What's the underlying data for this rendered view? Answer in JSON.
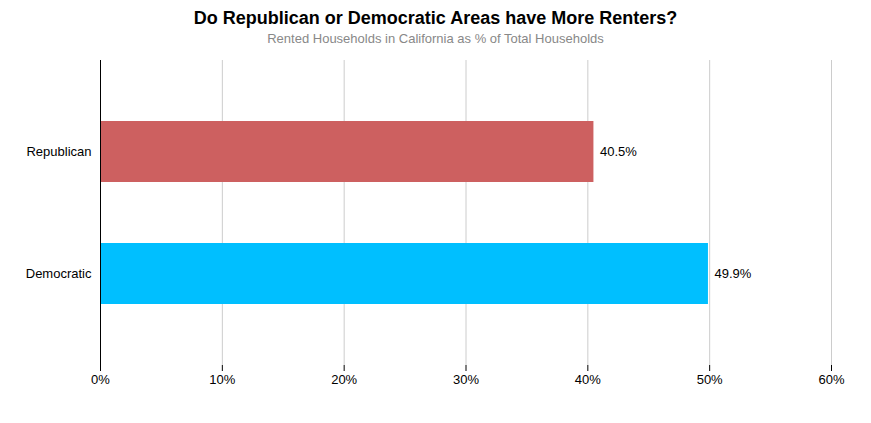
{
  "chart_data": {
    "type": "bar",
    "orientation": "horizontal",
    "title": "Do Republican or Democratic Areas have More Renters?",
    "subtitle": "Rented Households in California as % of Total Households",
    "categories": [
      "Democratic",
      "Republican"
    ],
    "values": [
      49.9,
      40.5
    ],
    "value_labels": [
      "49.9%",
      "40.5%"
    ],
    "data_labels": true,
    "colors": [
      "#00BFFF",
      "#CD6060"
    ],
    "xlim": [
      0,
      60
    ],
    "xticks": [
      {
        "value": 0,
        "label": "0%"
      },
      {
        "value": 10,
        "label": "10%"
      },
      {
        "value": 20,
        "label": "20%"
      },
      {
        "value": 30,
        "label": "30%"
      },
      {
        "value": 40,
        "label": "40%"
      },
      {
        "value": 50,
        "label": "50%"
      },
      {
        "value": 60,
        "label": "60%"
      }
    ],
    "grid": true
  }
}
